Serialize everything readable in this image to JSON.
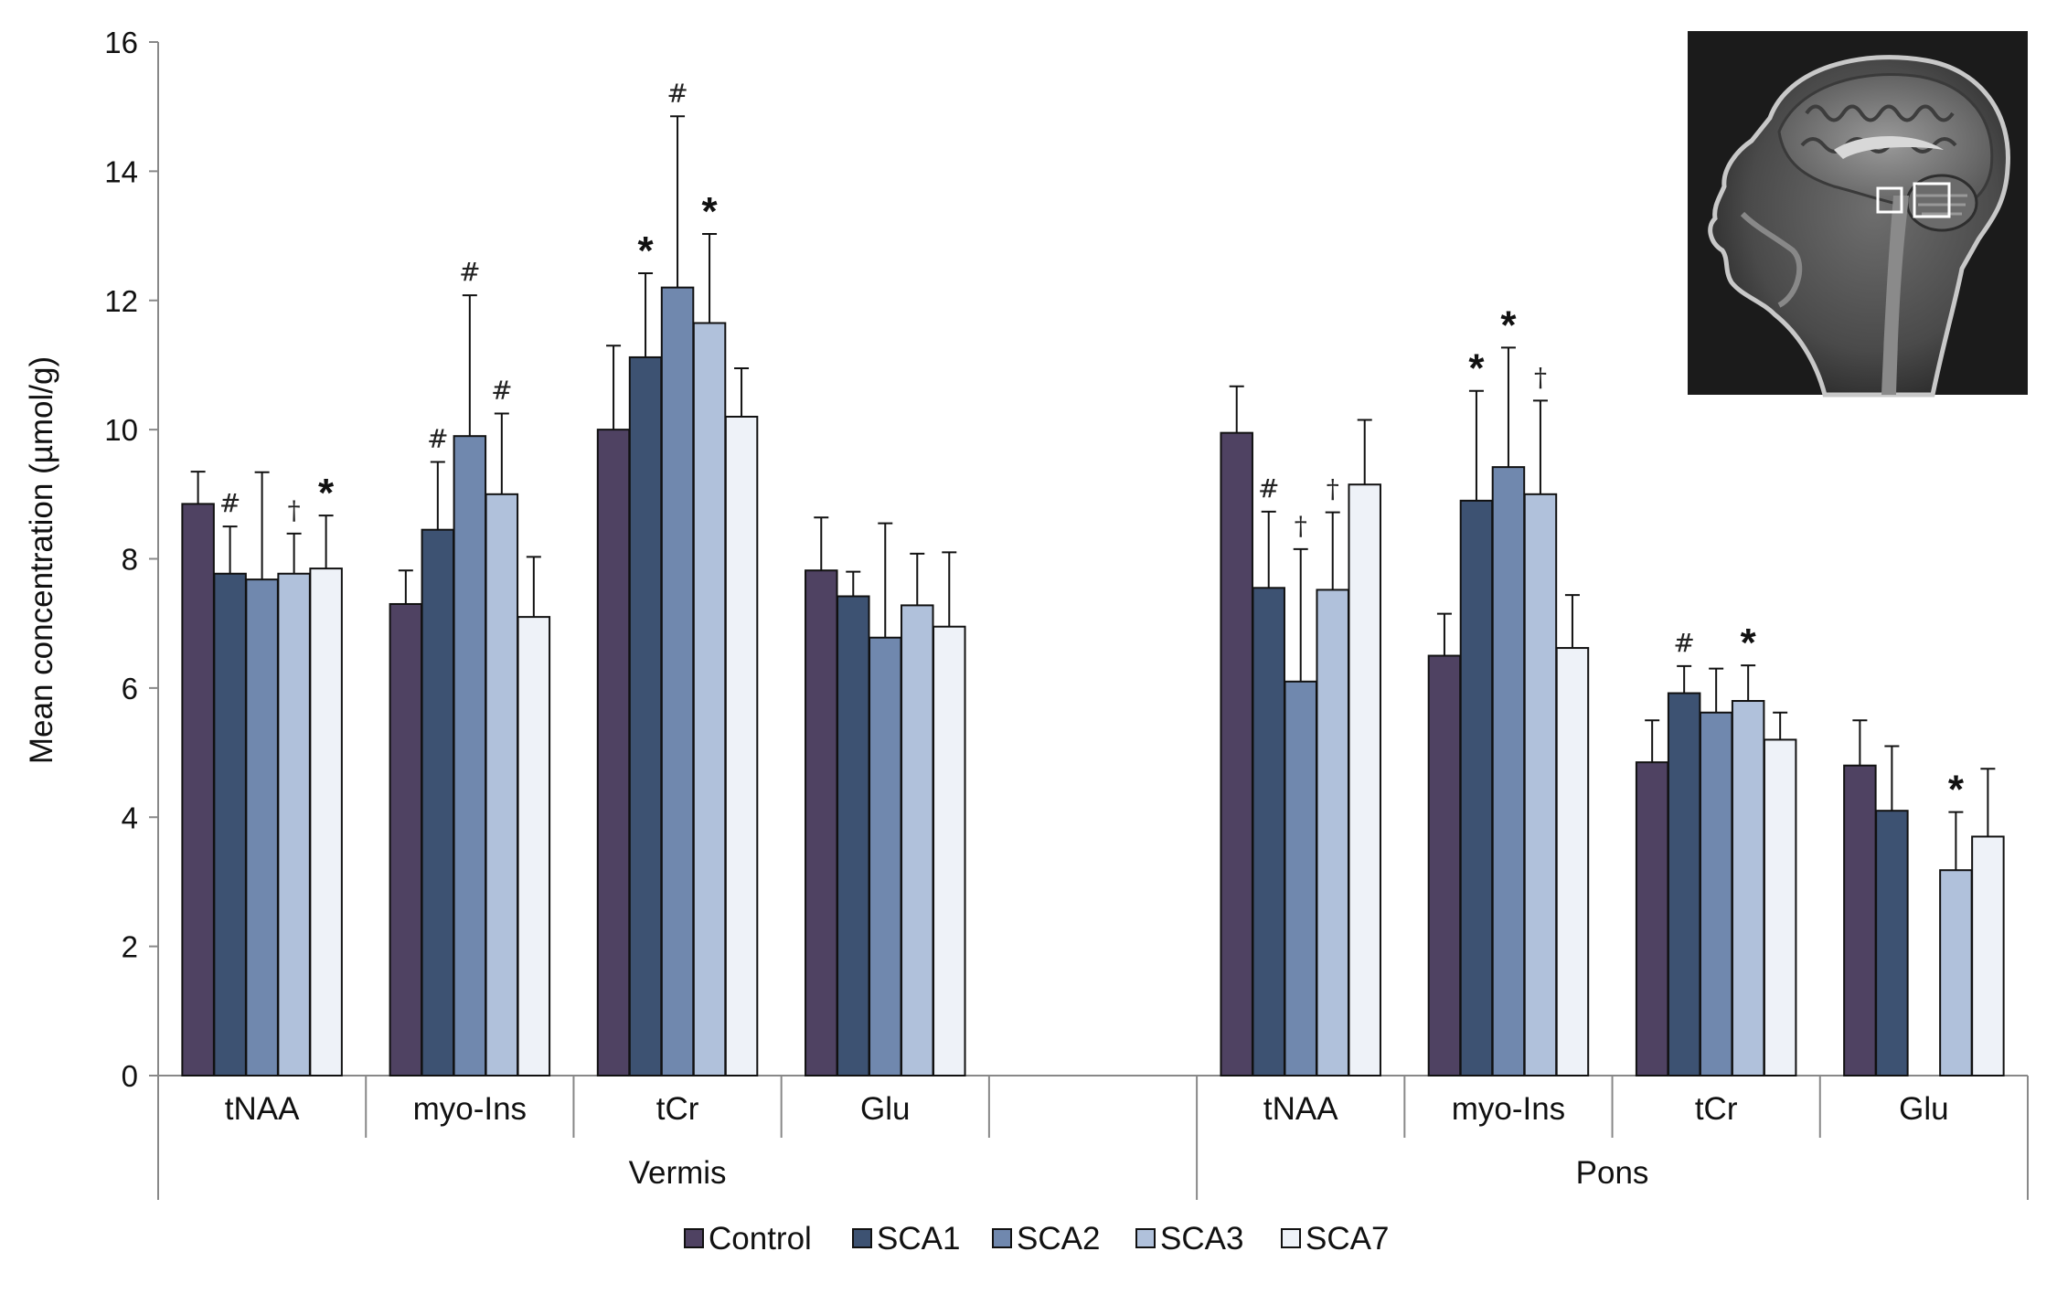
{
  "chart_data": {
    "type": "bar",
    "ylabel": "Mean concentration (µmol/g)",
    "ylim": [
      0,
      16
    ],
    "yticks": [
      "0",
      "2",
      "4",
      "6",
      "8",
      "10",
      "12",
      "14",
      "16"
    ],
    "grid": false,
    "legend_position": "bottom",
    "groups": [
      {
        "label": "Vermis",
        "categories": [
          "tNAA",
          "myo-Ins",
          "tCr",
          "Glu",
          ""
        ]
      },
      {
        "label": "Pons",
        "categories": [
          "tNAA",
          "myo-Ins",
          "tCr",
          "Glu"
        ]
      }
    ],
    "series": [
      {
        "name": "Control",
        "color": "#4f4262",
        "values": [
          8.85,
          7.3,
          10.0,
          7.82,
          null,
          9.95,
          6.5,
          4.85,
          4.8
        ],
        "errors": [
          0.5,
          0.52,
          1.3,
          0.82,
          null,
          0.72,
          0.65,
          0.65,
          0.7
        ],
        "annotations": [
          "",
          "",
          "",
          "",
          "",
          "",
          "",
          "",
          ""
        ]
      },
      {
        "name": "SCA1",
        "color": "#3d5272",
        "values": [
          7.77,
          8.45,
          11.12,
          7.42,
          null,
          7.55,
          8.9,
          5.92,
          4.1
        ],
        "errors": [
          0.73,
          1.05,
          1.3,
          0.38,
          null,
          1.18,
          1.7,
          0.42,
          1.0
        ],
        "annotations": [
          "#",
          "#",
          "*",
          "",
          "",
          "#",
          "*",
          "#",
          ""
        ]
      },
      {
        "name": "SCA2",
        "color": "#7088ae",
        "values": [
          7.68,
          9.9,
          12.2,
          6.78,
          null,
          6.1,
          9.42,
          5.62,
          null
        ],
        "errors": [
          1.66,
          2.18,
          2.65,
          1.77,
          null,
          2.05,
          1.85,
          0.68,
          null
        ],
        "annotations": [
          "",
          "#",
          "#",
          "",
          "",
          "†",
          "*",
          "",
          ""
        ]
      },
      {
        "name": "SCA3",
        "color": "#b0c1db",
        "values": [
          7.77,
          9.0,
          11.65,
          7.28,
          null,
          7.52,
          9.0,
          5.8,
          3.18
        ],
        "errors": [
          0.62,
          1.25,
          1.38,
          0.8,
          null,
          1.2,
          1.45,
          0.55,
          0.9
        ],
        "annotations": [
          "†",
          "#",
          "*",
          "",
          "",
          "†",
          "†",
          "*",
          "*"
        ]
      },
      {
        "name": "SCA7",
        "color": "#eef2f8",
        "values": [
          7.85,
          7.1,
          10.2,
          6.95,
          null,
          9.15,
          6.62,
          5.2,
          3.7
        ],
        "errors": [
          0.82,
          0.93,
          0.75,
          1.15,
          null,
          1.0,
          0.82,
          0.42,
          1.05
        ],
        "annotations": [
          "*",
          "",
          "",
          "",
          "",
          "",
          "",
          "",
          ""
        ]
      }
    ],
    "inset": {
      "type": "image",
      "subject": "sagittal brain MRI with two square voxel markers"
    }
  }
}
